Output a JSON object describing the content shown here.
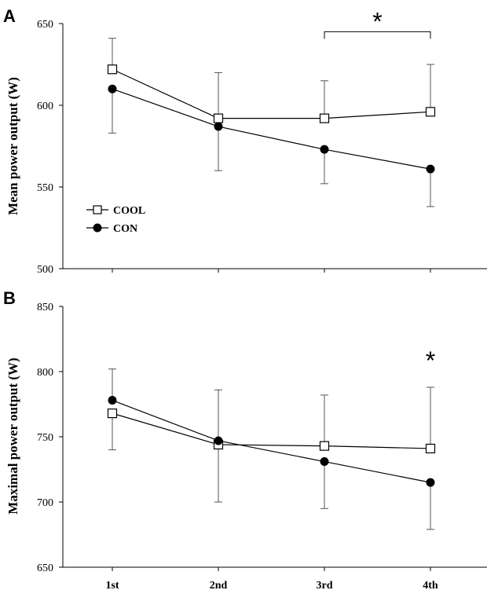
{
  "chart_data": [
    {
      "panel": "A",
      "type": "line",
      "categories": [
        "1st",
        "2nd",
        "3rd",
        "4th"
      ],
      "ylabel": "Mean power output (W)",
      "ylim": [
        500,
        650
      ],
      "yticks": [
        500,
        550,
        600,
        650
      ],
      "legend": "inside-left",
      "series": [
        {
          "name": "COOL",
          "marker": "open-square",
          "values": [
            622,
            592,
            592,
            596
          ],
          "err_upper": [
            641,
            620,
            615,
            625
          ],
          "err_lower": [
            null,
            null,
            null,
            null
          ]
        },
        {
          "name": "CON",
          "marker": "filled-circle",
          "values": [
            610,
            587,
            573,
            561
          ],
          "err_upper": [
            null,
            null,
            null,
            null
          ],
          "err_lower": [
            583,
            560,
            552,
            538
          ]
        }
      ],
      "significance": {
        "symbol": "*",
        "bracket": [
          "3rd",
          "4th"
        ],
        "bracket_y": 645
      }
    },
    {
      "panel": "B",
      "type": "line",
      "categories": [
        "1st",
        "2nd",
        "3rd",
        "4th"
      ],
      "ylabel": "Maximal power output (W)",
      "ylim": [
        650,
        850
      ],
      "yticks": [
        650,
        700,
        750,
        800,
        850
      ],
      "legend": "none",
      "series": [
        {
          "name": "COOL",
          "marker": "open-square",
          "values": [
            768,
            744,
            743,
            741
          ],
          "err_upper": [
            null,
            786,
            782,
            788
          ],
          "err_lower": [
            740,
            null,
            null,
            null
          ]
        },
        {
          "name": "CON",
          "marker": "filled-circle",
          "values": [
            778,
            747,
            731,
            715
          ],
          "err_upper": [
            802,
            null,
            null,
            null
          ],
          "err_lower": [
            null,
            700,
            695,
            679
          ]
        }
      ],
      "significance": {
        "symbol": "*",
        "at": "4th",
        "y": 803
      }
    }
  ]
}
